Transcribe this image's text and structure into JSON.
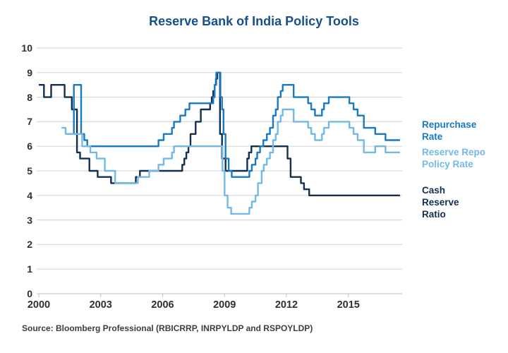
{
  "title": "Reserve Bank of India Policy Tools",
  "source": "Source: Bloomberg Professional (RBICRRP, INRPYLDP and RSPOYLDP)",
  "colors": {
    "title_blue": "#174f8d",
    "grid_gray": "#d9d9d9",
    "baseline_gray": "#cccccc",
    "axis_text": "#2f2f2f"
  },
  "chart_data": {
    "type": "line",
    "step": "after",
    "title": "Reserve Bank of India Policy Tools",
    "xlabel": "",
    "ylabel": "",
    "x_range": [
      2000,
      2017.5
    ],
    "ylim": [
      0,
      10
    ],
    "y_ticks": [
      0,
      1,
      2,
      3,
      4,
      5,
      6,
      7,
      8,
      9,
      10
    ],
    "x_ticks": [
      2000,
      2003,
      2006,
      2009,
      2012,
      2015
    ],
    "grid": "horizontal",
    "legend_position": "right-of-lines",
    "series": [
      {
        "name": "Repurchase Rate",
        "legend": "Repurchase\nRate",
        "color": "#1879c4",
        "points": [
          [
            2001.3,
            6.5
          ],
          [
            2001.7,
            8.5
          ],
          [
            2002.05,
            6.5
          ],
          [
            2002.2,
            6.25
          ],
          [
            2002.35,
            6.0
          ],
          [
            2005.8,
            6.25
          ],
          [
            2006.05,
            6.5
          ],
          [
            2006.45,
            6.75
          ],
          [
            2006.55,
            7.0
          ],
          [
            2006.85,
            7.25
          ],
          [
            2007.1,
            7.5
          ],
          [
            2007.3,
            7.75
          ],
          [
            2008.45,
            8.0
          ],
          [
            2008.52,
            8.5
          ],
          [
            2008.6,
            9.0
          ],
          [
            2008.8,
            8.0
          ],
          [
            2008.88,
            7.5
          ],
          [
            2008.95,
            6.5
          ],
          [
            2009.05,
            5.5
          ],
          [
            2009.2,
            5.0
          ],
          [
            2009.35,
            4.75
          ],
          [
            2010.2,
            5.0
          ],
          [
            2010.32,
            5.25
          ],
          [
            2010.5,
            5.5
          ],
          [
            2010.58,
            5.75
          ],
          [
            2010.72,
            6.0
          ],
          [
            2010.88,
            6.25
          ],
          [
            2011.05,
            6.5
          ],
          [
            2011.2,
            6.75
          ],
          [
            2011.35,
            7.25
          ],
          [
            2011.48,
            7.5
          ],
          [
            2011.58,
            8.0
          ],
          [
            2011.72,
            8.25
          ],
          [
            2011.82,
            8.5
          ],
          [
            2012.35,
            8.0
          ],
          [
            2013.05,
            7.75
          ],
          [
            2013.2,
            7.5
          ],
          [
            2013.38,
            7.25
          ],
          [
            2013.72,
            7.5
          ],
          [
            2013.82,
            7.75
          ],
          [
            2014.05,
            8.0
          ],
          [
            2015.05,
            7.75
          ],
          [
            2015.25,
            7.5
          ],
          [
            2015.45,
            7.25
          ],
          [
            2015.75,
            6.75
          ],
          [
            2016.3,
            6.5
          ],
          [
            2016.8,
            6.25
          ]
        ]
      },
      {
        "name": "Reserve Repo Policy Rate",
        "legend": "Reserve Repo\nPolicy Rate",
        "color": "#72b9e5",
        "points": [
          [
            2001.1,
            6.75
          ],
          [
            2001.3,
            6.5
          ],
          [
            2002.1,
            6.0
          ],
          [
            2002.5,
            5.75
          ],
          [
            2002.8,
            5.5
          ],
          [
            2003.2,
            5.0
          ],
          [
            2003.7,
            4.5
          ],
          [
            2004.8,
            4.75
          ],
          [
            2005.35,
            5.0
          ],
          [
            2005.8,
            5.25
          ],
          [
            2006.05,
            5.5
          ],
          [
            2006.45,
            5.75
          ],
          [
            2006.55,
            6.0
          ],
          [
            2008.9,
            5.0
          ],
          [
            2009.0,
            4.0
          ],
          [
            2009.15,
            3.5
          ],
          [
            2009.32,
            3.25
          ],
          [
            2010.2,
            3.5
          ],
          [
            2010.32,
            3.75
          ],
          [
            2010.5,
            4.0
          ],
          [
            2010.62,
            4.5
          ],
          [
            2010.8,
            5.0
          ],
          [
            2010.9,
            5.25
          ],
          [
            2011.05,
            5.5
          ],
          [
            2011.2,
            5.75
          ],
          [
            2011.35,
            6.25
          ],
          [
            2011.48,
            6.5
          ],
          [
            2011.58,
            7.0
          ],
          [
            2011.72,
            7.25
          ],
          [
            2011.82,
            7.5
          ],
          [
            2012.35,
            7.0
          ],
          [
            2013.05,
            6.75
          ],
          [
            2013.2,
            6.5
          ],
          [
            2013.38,
            6.25
          ],
          [
            2013.72,
            6.5
          ],
          [
            2013.82,
            6.75
          ],
          [
            2014.05,
            7.0
          ],
          [
            2015.05,
            6.75
          ],
          [
            2015.25,
            6.5
          ],
          [
            2015.45,
            6.25
          ],
          [
            2015.75,
            5.75
          ],
          [
            2016.3,
            6.0
          ],
          [
            2016.8,
            5.75
          ]
        ]
      },
      {
        "name": "Cash Reserve Ratio",
        "legend": "Cash\nReserve\nRatio",
        "color": "#12304f",
        "points": [
          [
            2000.0,
            8.5
          ],
          [
            2000.25,
            8.0
          ],
          [
            2000.6,
            8.5
          ],
          [
            2001.25,
            8.0
          ],
          [
            2001.6,
            7.5
          ],
          [
            2001.85,
            5.75
          ],
          [
            2002.0,
            5.5
          ],
          [
            2002.45,
            5.0
          ],
          [
            2002.85,
            4.75
          ],
          [
            2003.5,
            4.5
          ],
          [
            2004.7,
            4.75
          ],
          [
            2004.9,
            5.0
          ],
          [
            2006.95,
            5.25
          ],
          [
            2007.05,
            5.5
          ],
          [
            2007.15,
            5.75
          ],
          [
            2007.25,
            6.0
          ],
          [
            2007.35,
            6.5
          ],
          [
            2007.6,
            7.0
          ],
          [
            2007.85,
            7.5
          ],
          [
            2008.3,
            7.75
          ],
          [
            2008.38,
            8.0
          ],
          [
            2008.45,
            8.25
          ],
          [
            2008.52,
            8.5
          ],
          [
            2008.58,
            8.75
          ],
          [
            2008.65,
            9.0
          ],
          [
            2008.78,
            6.5
          ],
          [
            2008.88,
            5.5
          ],
          [
            2009.05,
            5.0
          ],
          [
            2010.1,
            5.5
          ],
          [
            2010.18,
            5.75
          ],
          [
            2010.3,
            6.0
          ],
          [
            2012.05,
            5.5
          ],
          [
            2012.2,
            4.75
          ],
          [
            2012.7,
            4.5
          ],
          [
            2012.85,
            4.25
          ],
          [
            2013.1,
            4.0
          ]
        ]
      }
    ]
  }
}
